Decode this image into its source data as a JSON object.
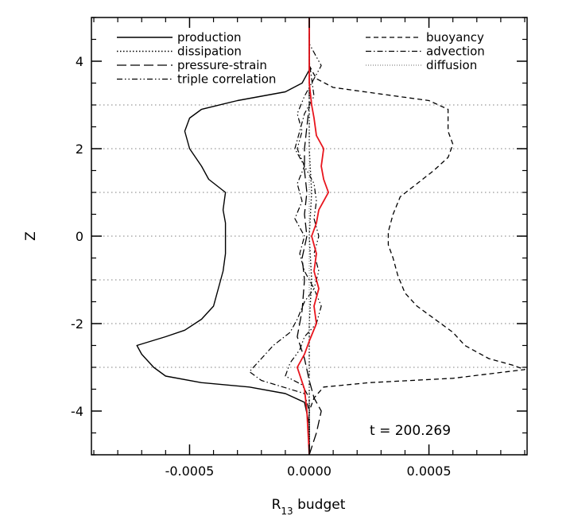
{
  "chart_data": {
    "type": "line",
    "title": "",
    "xlabel_main": "R",
    "xlabel_sub": "13",
    "xlabel_rest": " budget",
    "ylabel": "Z",
    "xlim": [
      -0.00091,
      0.00091
    ],
    "ylim": [
      -5,
      5
    ],
    "x_ticks": [
      -0.0005,
      0.0,
      0.0005
    ],
    "x_tick_labels": [
      "-0.0005",
      "0.0000",
      "0.0005"
    ],
    "y_ticks": [
      -4,
      -2,
      0,
      2,
      4
    ],
    "y_tick_labels": [
      "-4",
      "-2",
      "0",
      "2",
      "4"
    ],
    "horizontal_reference_lines_z": [
      -3,
      -2,
      -1,
      0,
      1,
      2,
      3
    ],
    "annotation": "t = 200.269",
    "legend_placement": "top",
    "accent_color": "#e8141c",
    "series": [
      {
        "name": "production",
        "style": "solid",
        "points": [
          [
            0,
            -5
          ],
          [
            0,
            -4.3
          ],
          [
            -2e-05,
            -3.8
          ],
          [
            -0.0001,
            -3.6
          ],
          [
            -0.00025,
            -3.45
          ],
          [
            -0.00045,
            -3.35
          ],
          [
            -0.0006,
            -3.2
          ],
          [
            -0.00065,
            -3.0
          ],
          [
            -0.0007,
            -2.7
          ],
          [
            -0.00072,
            -2.5
          ],
          [
            -0.0006,
            -2.3
          ],
          [
            -0.00052,
            -2.15
          ],
          [
            -0.00045,
            -1.9
          ],
          [
            -0.0004,
            -1.6
          ],
          [
            -0.00038,
            -1.2
          ],
          [
            -0.00036,
            -0.8
          ],
          [
            -0.00035,
            -0.4
          ],
          [
            -0.00035,
            0.0
          ],
          [
            -0.00035,
            0.3
          ],
          [
            -0.00036,
            0.6
          ],
          [
            -0.00035,
            1.0
          ],
          [
            -0.00042,
            1.3
          ],
          [
            -0.00045,
            1.6
          ],
          [
            -0.0005,
            2.0
          ],
          [
            -0.00052,
            2.4
          ],
          [
            -0.0005,
            2.7
          ],
          [
            -0.00045,
            2.9
          ],
          [
            -0.0003,
            3.1
          ],
          [
            -0.0001,
            3.3
          ],
          [
            -3e-05,
            3.5
          ],
          [
            0,
            3.8
          ],
          [
            0,
            5
          ]
        ]
      },
      {
        "name": "dissipation",
        "style": "dotted",
        "points": [
          [
            0,
            -5
          ],
          [
            0,
            -2
          ],
          [
            1e-05,
            -1
          ],
          [
            0,
            0
          ],
          [
            1e-05,
            1
          ],
          [
            0,
            2
          ],
          [
            0,
            3
          ],
          [
            0,
            5
          ]
        ]
      },
      {
        "name": "pressure-strain",
        "style": "longdash",
        "points": [
          [
            0,
            -5
          ],
          [
            3e-05,
            -4.5
          ],
          [
            5e-05,
            -4.0
          ],
          [
            2e-05,
            -3.7
          ],
          [
            0,
            -3.3
          ],
          [
            -2e-05,
            -2.8
          ],
          [
            -5e-05,
            -2.3
          ],
          [
            -3e-05,
            -1.7
          ],
          [
            -2e-05,
            -1.0
          ],
          [
            -3e-05,
            -0.5
          ],
          [
            -1e-05,
            0.0
          ],
          [
            -2e-05,
            0.5
          ],
          [
            -1e-05,
            1.0
          ],
          [
            -2e-05,
            1.5
          ],
          [
            -2e-05,
            2.0
          ],
          [
            -1e-05,
            2.5
          ],
          [
            0,
            3.0
          ],
          [
            0,
            4.0
          ],
          [
            0,
            5
          ]
        ]
      },
      {
        "name": "triple correlation",
        "style": "dashdotdot",
        "points": [
          [
            0,
            -5
          ],
          [
            0,
            -3.7
          ],
          [
            -3e-05,
            -3.4
          ],
          [
            -0.0001,
            -3.2
          ],
          [
            -8e-05,
            -2.9
          ],
          [
            -4e-05,
            -2.6
          ],
          [
            -2e-05,
            -2.3
          ],
          [
            3e-05,
            -2.0
          ],
          [
            5e-05,
            -1.6
          ],
          [
            2e-05,
            -1.2
          ],
          [
            4e-05,
            -0.8
          ],
          [
            2e-05,
            -0.4
          ],
          [
            4e-05,
            0.0
          ],
          [
            2e-05,
            0.4
          ],
          [
            3e-05,
            0.8
          ],
          [
            2e-05,
            1.2
          ],
          [
            -2e-05,
            1.6
          ],
          [
            -5e-05,
            2.0
          ],
          [
            -3e-05,
            2.4
          ],
          [
            -5e-05,
            2.8
          ],
          [
            -2e-05,
            3.2
          ],
          [
            2e-05,
            3.6
          ],
          [
            5e-05,
            3.9
          ],
          [
            3e-05,
            4.1
          ],
          [
            0,
            4.4
          ],
          [
            0,
            5
          ]
        ]
      },
      {
        "name": "buoyancy",
        "style": "dashed",
        "points": [
          [
            0,
            -5
          ],
          [
            0,
            -4.0
          ],
          [
            2e-05,
            -3.7
          ],
          [
            6e-05,
            -3.45
          ],
          [
            0.00025,
            -3.35
          ],
          [
            0.0006,
            -3.25
          ],
          [
            0.0009,
            -3.05
          ],
          [
            0.00085,
            -2.95
          ],
          [
            0.00075,
            -2.8
          ],
          [
            0.00065,
            -2.5
          ],
          [
            0.0006,
            -2.2
          ],
          [
            0.00055,
            -2.0
          ],
          [
            0.00045,
            -1.6
          ],
          [
            0.0004,
            -1.3
          ],
          [
            0.00037,
            -0.9
          ],
          [
            0.00035,
            -0.5
          ],
          [
            0.00033,
            -0.2
          ],
          [
            0.00033,
            0.1
          ],
          [
            0.00035,
            0.5
          ],
          [
            0.00038,
            0.9
          ],
          [
            0.00045,
            1.2
          ],
          [
            0.00052,
            1.5
          ],
          [
            0.00058,
            1.8
          ],
          [
            0.0006,
            2.1
          ],
          [
            0.00058,
            2.4
          ],
          [
            0.00058,
            2.9
          ],
          [
            0.0005,
            3.1
          ],
          [
            0.0003,
            3.25
          ],
          [
            0.0001,
            3.4
          ],
          [
            3e-05,
            3.6
          ],
          [
            0,
            3.9
          ],
          [
            0,
            5
          ]
        ]
      },
      {
        "name": "advection",
        "style": "dashdot",
        "points": [
          [
            0,
            -5
          ],
          [
            0,
            -4.0
          ],
          [
            -2e-05,
            -3.6
          ],
          [
            -0.0002,
            -3.3
          ],
          [
            -0.00025,
            -3.1
          ],
          [
            -0.0002,
            -2.8
          ],
          [
            -0.00015,
            -2.5
          ],
          [
            -8e-05,
            -2.2
          ],
          [
            -5e-05,
            -1.9
          ],
          [
            -2e-05,
            -1.5
          ],
          [
            2e-05,
            -1.2
          ],
          [
            -2e-05,
            -0.8
          ],
          [
            -4e-05,
            -0.4
          ],
          [
            -2e-05,
            0.0
          ],
          [
            -6e-05,
            0.4
          ],
          [
            -3e-05,
            0.8
          ],
          [
            -5e-05,
            1.2
          ],
          [
            -2e-05,
            1.6
          ],
          [
            -6e-05,
            2.0
          ],
          [
            -4e-05,
            2.4
          ],
          [
            -2e-05,
            2.8
          ],
          [
            2e-05,
            3.2
          ],
          [
            1e-05,
            3.6
          ],
          [
            0,
            4.0
          ],
          [
            0,
            5
          ]
        ]
      },
      {
        "name": "diffusion",
        "style": "finedotted",
        "points": [
          [
            0,
            -5
          ],
          [
            0,
            5
          ]
        ]
      },
      {
        "name": "",
        "style": "red-solid",
        "points": [
          [
            0,
            -5
          ],
          [
            -1e-05,
            -4.0
          ],
          [
            -2e-05,
            -3.5
          ],
          [
            -5e-05,
            -3.0
          ],
          [
            -2e-05,
            -2.7
          ],
          [
            0,
            -2.4
          ],
          [
            3e-05,
            -2.0
          ],
          [
            2e-05,
            -1.6
          ],
          [
            4e-05,
            -1.2
          ],
          [
            2e-05,
            -0.8
          ],
          [
            3e-05,
            -0.4
          ],
          [
            1e-05,
            0.0
          ],
          [
            3e-05,
            0.3
          ],
          [
            4e-05,
            0.6
          ],
          [
            8e-05,
            1.0
          ],
          [
            6e-05,
            1.3
          ],
          [
            5e-05,
            1.6
          ],
          [
            6e-05,
            2.0
          ],
          [
            3e-05,
            2.3
          ],
          [
            2e-05,
            2.7
          ],
          [
            1e-05,
            3.0
          ],
          [
            0,
            3.5
          ],
          [
            0,
            4.0
          ],
          [
            0,
            5
          ]
        ]
      }
    ]
  }
}
